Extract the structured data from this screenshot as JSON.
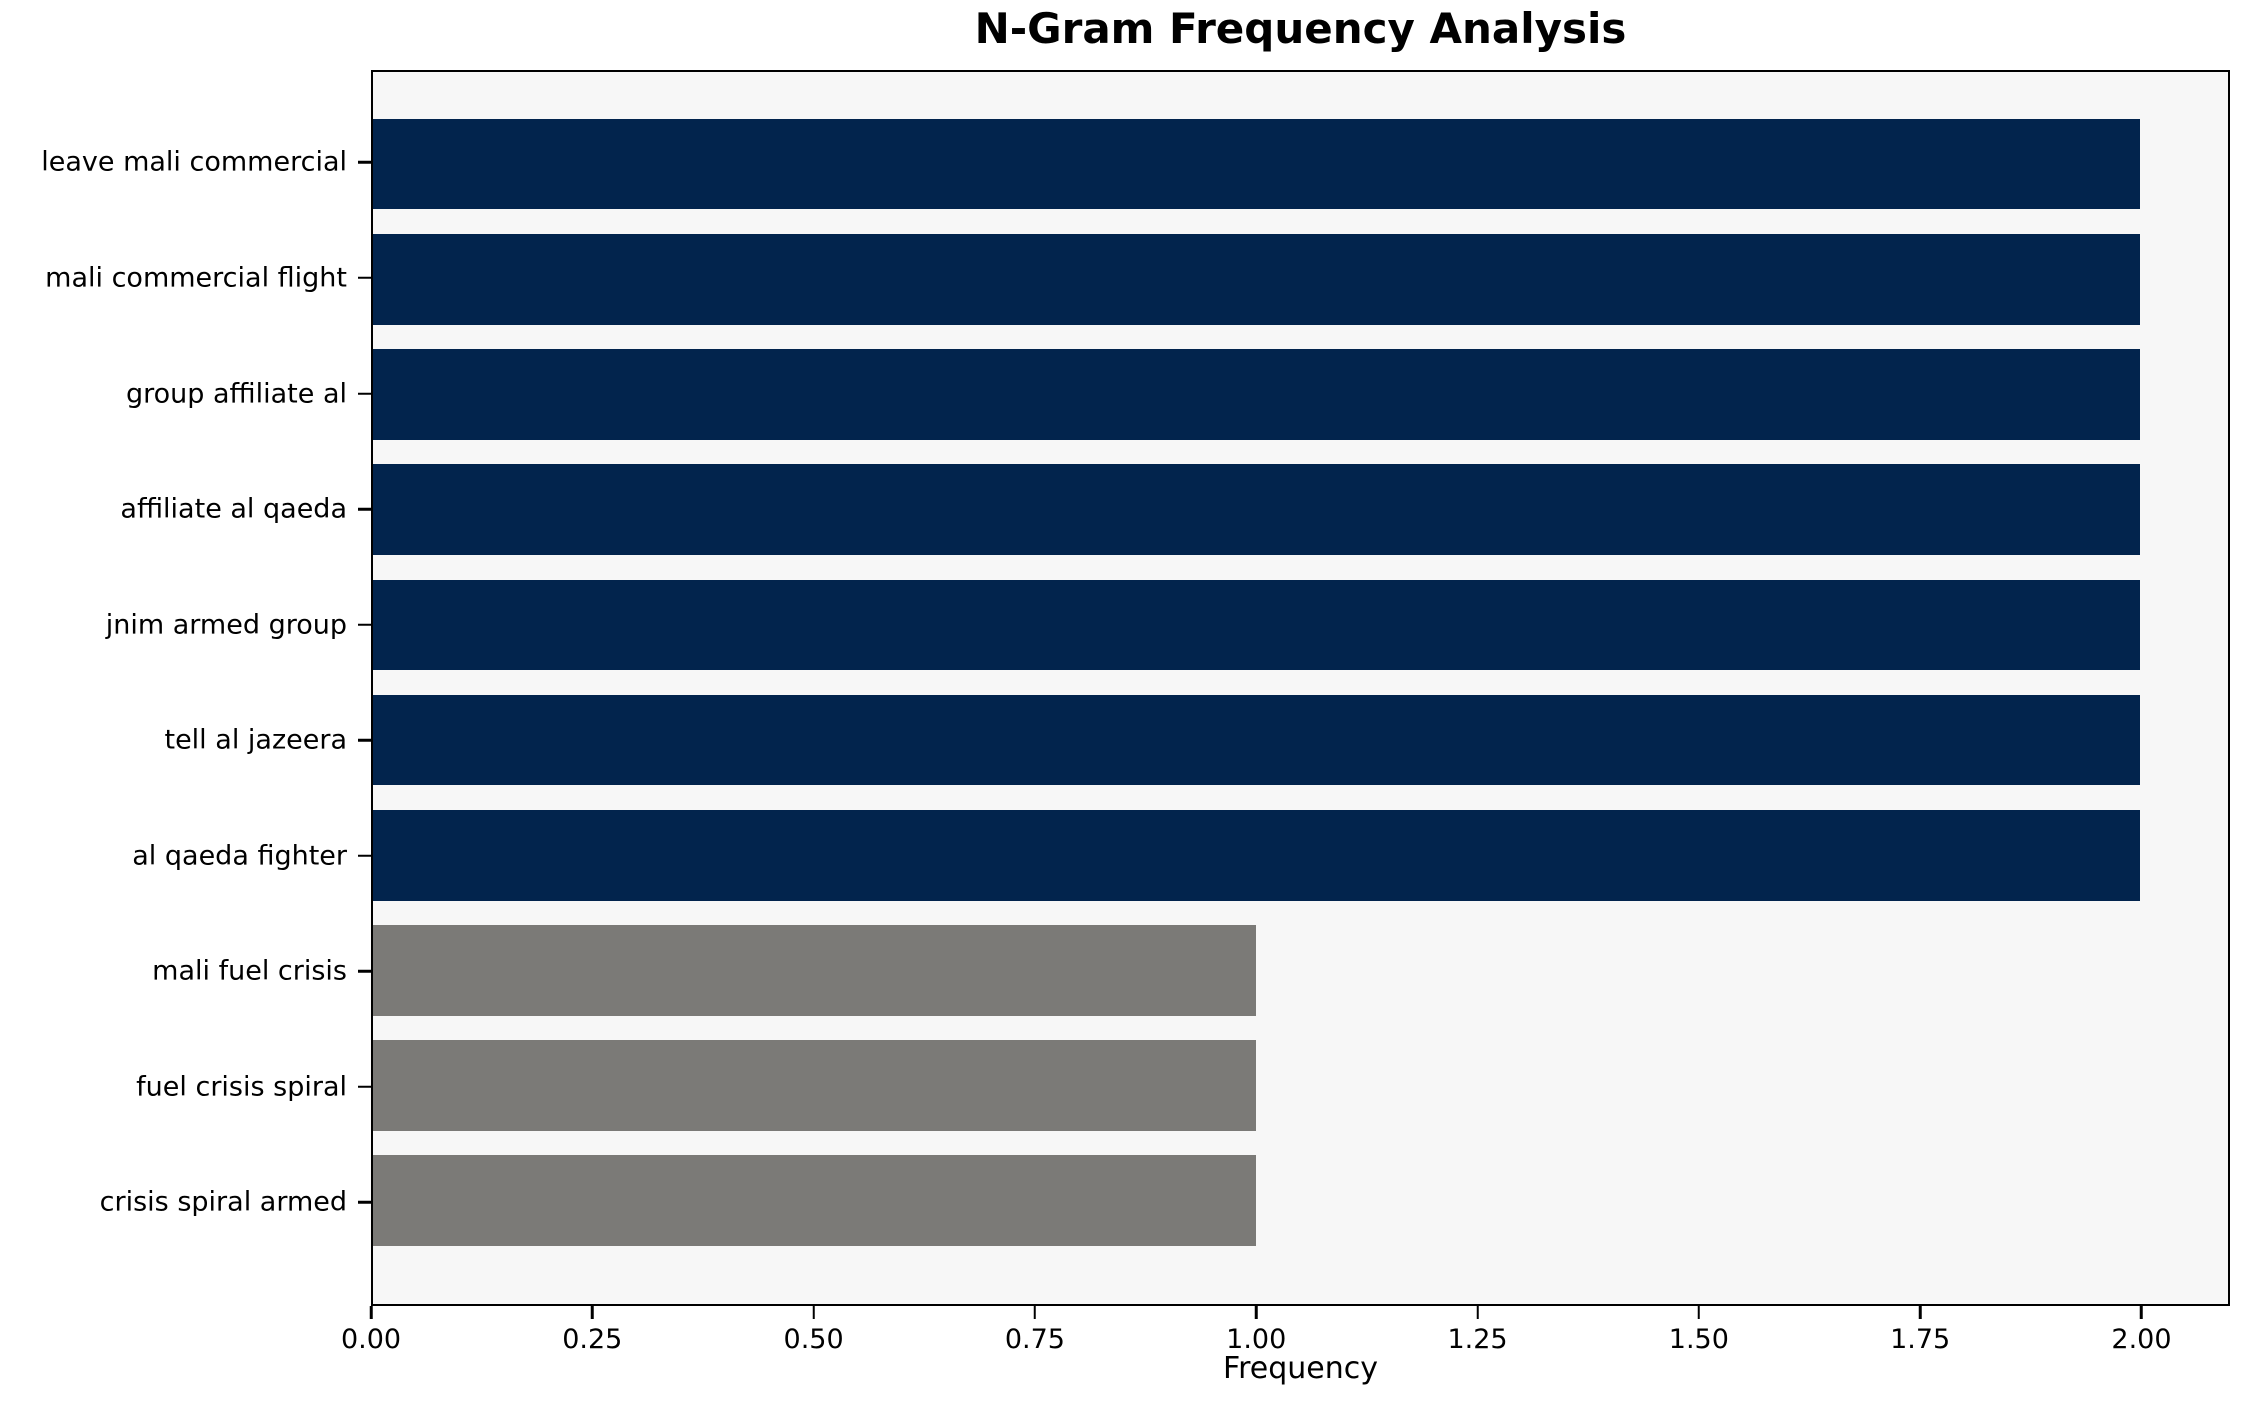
{
  "chart_data": {
    "type": "bar",
    "orientation": "horizontal",
    "title": "N-Gram Frequency Analysis",
    "xlabel": "Frequency",
    "ylabel": "",
    "categories": [
      "leave mali commercial",
      "mali commercial flight",
      "group affiliate al",
      "affiliate al qaeda",
      "jnim armed group",
      "tell al jazeera",
      "al qaeda fighter",
      "mali fuel crisis",
      "fuel crisis spiral",
      "crisis spiral armed"
    ],
    "values": [
      2,
      2,
      2,
      2,
      2,
      2,
      2,
      1,
      1,
      1
    ],
    "colors": [
      "#02244d",
      "#02244d",
      "#02244d",
      "#02244d",
      "#02244d",
      "#02244d",
      "#02244d",
      "#7b7a77",
      "#7b7a77",
      "#7b7a77"
    ],
    "xlim": [
      0,
      2.1
    ],
    "xticks": [
      0.0,
      0.25,
      0.5,
      0.75,
      1.0,
      1.25,
      1.5,
      1.75,
      2.0
    ],
    "xtick_labels": [
      "0.00",
      "0.25",
      "0.50",
      "0.75",
      "1.00",
      "1.25",
      "1.50",
      "1.75",
      "2.00"
    ],
    "grid": false,
    "legend_position": "none",
    "plot_background": "#f7f7f7",
    "figure_background": "#ffffff",
    "bar_color_high": "#02244d",
    "bar_color_low": "#7b7a77"
  }
}
